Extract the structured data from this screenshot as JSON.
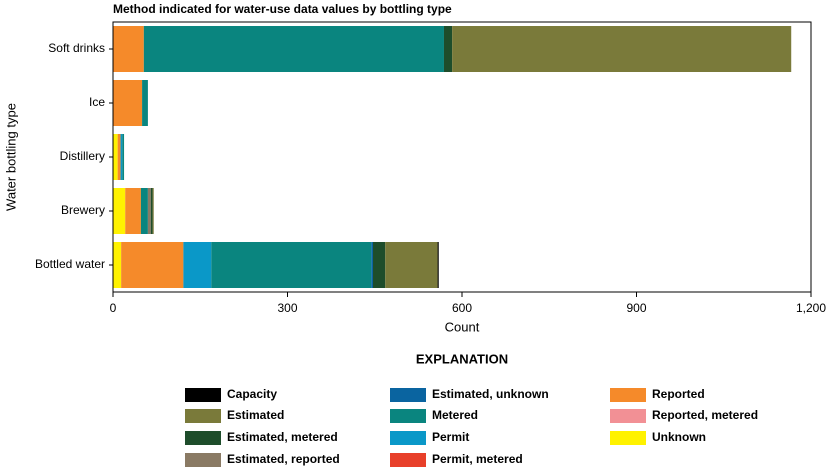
{
  "chart_data": {
    "type": "stacked_barh",
    "title": "Method indicated for water-use data values by bottling type",
    "x_label": "Count",
    "y_label": "Water bottling type",
    "legend_title": "EXPLANATION",
    "categories": [
      "Soft drinks",
      "Ice",
      "Distillery",
      "Brewery",
      "Bottled water"
    ],
    "series": [
      {
        "name": "Unknown",
        "color": "#fff200",
        "values": [
          0,
          0,
          8,
          21,
          14
        ]
      },
      {
        "name": "Reported, metered",
        "color": "#f29095",
        "values": [
          0,
          0,
          0,
          0,
          0
        ]
      },
      {
        "name": "Reported",
        "color": "#f58a2a",
        "values": [
          53,
          50,
          5,
          27,
          107
        ]
      },
      {
        "name": "Permit, metered",
        "color": "#e8402a",
        "values": [
          0,
          0,
          0,
          0,
          0
        ]
      },
      {
        "name": "Permit",
        "color": "#0a98c8",
        "values": [
          0,
          0,
          3,
          0,
          48
        ]
      },
      {
        "name": "Metered",
        "color": "#0a857f",
        "values": [
          516,
          10,
          3,
          12,
          275
        ]
      },
      {
        "name": "Estimated, unknown",
        "color": "#0a64a0",
        "values": [
          0,
          0,
          0,
          0,
          3
        ]
      },
      {
        "name": "Estimated, reported",
        "color": "#8a7a64",
        "values": [
          0,
          0,
          0,
          5,
          0
        ]
      },
      {
        "name": "Estimated, metered",
        "color": "#1e4d2b",
        "values": [
          14,
          0,
          0,
          3,
          21
        ]
      },
      {
        "name": "Estimated",
        "color": "#7a7a3a",
        "values": [
          583,
          0,
          0,
          2,
          90
        ]
      },
      {
        "name": "Capacity",
        "color": "#000000",
        "values": [
          0,
          0,
          0,
          0,
          2
        ]
      }
    ],
    "xlim": [
      0,
      1200
    ],
    "xticks": [
      0,
      300,
      600,
      900,
      {
        "value": 1200,
        "label": "1,200"
      }
    ]
  }
}
